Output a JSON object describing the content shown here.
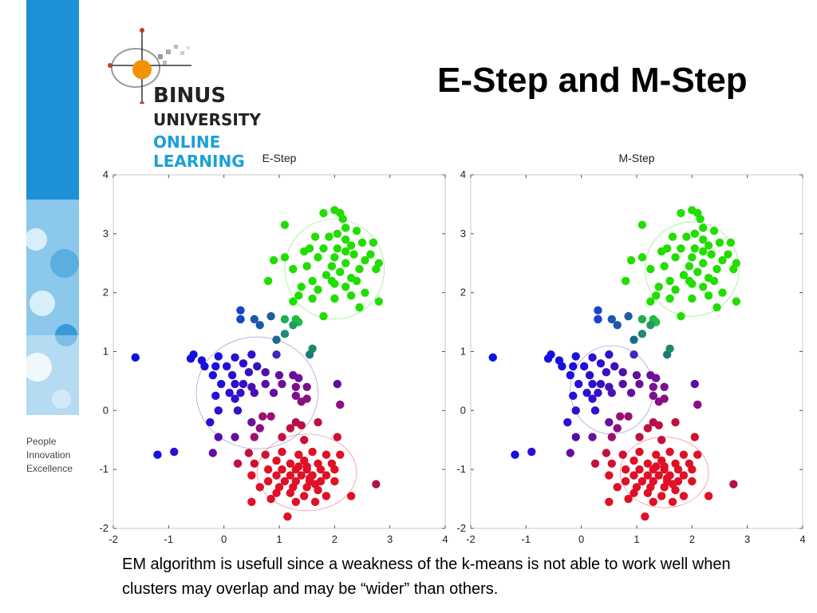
{
  "slide": {
    "title": "E-Step and M-Step",
    "caption": "EM algorithm is usefull since a weakness of the k-means is not able to work well when clusters may overlap and may be “wider” than others.",
    "logo": {
      "line1": "BINUS",
      "line2": "UNIVERSITY",
      "line3": "ONLINE",
      "line4": "LEARNING"
    },
    "tagline": [
      "People",
      "Innovation",
      "Excellence"
    ],
    "colors": {
      "accent_blue": "#1ba0d8",
      "brand_orange": "#f39200"
    }
  },
  "chart_data": [
    {
      "type": "scatter",
      "title": "E-Step",
      "xlim": [
        -2,
        4
      ],
      "ylim": [
        -2,
        4
      ],
      "xticks": [
        -2,
        -1,
        0,
        1,
        2,
        3,
        4
      ],
      "yticks": [
        -2,
        -1,
        0,
        1,
        2,
        3,
        4
      ],
      "grid": false,
      "components": [
        {
          "cx": 1.5,
          "cy": -1.05,
          "rx": 0.9,
          "ry": 0.65,
          "color": "#e8102a"
        },
        {
          "cx": 0.6,
          "cy": 0.3,
          "rx": 1.1,
          "ry": 0.95,
          "color": "#5a2aa8"
        },
        {
          "cx": 2.0,
          "cy": 2.4,
          "rx": 0.9,
          "ry": 0.85,
          "color": "#22dd00"
        }
      ],
      "points": [
        [
          2.0,
          3.4,
          "#22dd00"
        ],
        [
          2.1,
          3.35,
          "#22dd00"
        ],
        [
          1.8,
          3.35,
          "#22dd00"
        ],
        [
          2.15,
          3.25,
          "#22dd00"
        ],
        [
          2.2,
          3.1,
          "#22dd00"
        ],
        [
          2.05,
          3.0,
          "#22dd00"
        ],
        [
          2.4,
          3.05,
          "#22dd00"
        ],
        [
          1.9,
          2.95,
          "#22dd00"
        ],
        [
          1.65,
          2.95,
          "#22dd00"
        ],
        [
          2.2,
          2.9,
          "#22dd00"
        ],
        [
          2.7,
          2.85,
          "#22dd00"
        ],
        [
          2.5,
          2.85,
          "#22dd00"
        ],
        [
          2.3,
          2.8,
          "#22dd00"
        ],
        [
          2.05,
          2.75,
          "#22dd00"
        ],
        [
          1.8,
          2.75,
          "#22dd00"
        ],
        [
          1.45,
          2.7,
          "#22dd00"
        ],
        [
          2.65,
          2.65,
          "#22dd00"
        ],
        [
          2.35,
          2.65,
          "#22dd00"
        ],
        [
          2.0,
          2.6,
          "#22dd00"
        ],
        [
          1.7,
          2.6,
          "#22dd00"
        ],
        [
          0.9,
          2.55,
          "#22dd00"
        ],
        [
          2.55,
          2.55,
          "#22dd00"
        ],
        [
          2.8,
          2.5,
          "#22dd00"
        ],
        [
          2.2,
          2.5,
          "#22dd00"
        ],
        [
          1.95,
          2.45,
          "#22dd00"
        ],
        [
          1.5,
          2.45,
          "#22dd00"
        ],
        [
          2.45,
          2.4,
          "#22dd00"
        ],
        [
          2.75,
          2.4,
          "#22dd00"
        ],
        [
          1.25,
          2.4,
          "#22dd00"
        ],
        [
          2.1,
          2.35,
          "#22dd00"
        ],
        [
          1.85,
          2.3,
          "#22dd00"
        ],
        [
          2.3,
          2.25,
          "#22dd00"
        ],
        [
          1.6,
          2.2,
          "#22dd00"
        ],
        [
          2.0,
          2.15,
          "#22dd00"
        ],
        [
          2.2,
          2.1,
          "#22dd00"
        ],
        [
          0.8,
          2.2,
          "#22dd00"
        ],
        [
          1.4,
          2.1,
          "#22dd00"
        ],
        [
          1.7,
          2.05,
          "#22dd00"
        ],
        [
          2.55,
          2.0,
          "#22dd00"
        ],
        [
          2.3,
          1.95,
          "#22dd00"
        ],
        [
          1.6,
          1.9,
          "#22dd00"
        ],
        [
          2.0,
          1.9,
          "#22dd00"
        ],
        [
          1.35,
          1.95,
          "#22dd00"
        ],
        [
          1.25,
          1.85,
          "#22dd00"
        ],
        [
          2.8,
          1.85,
          "#22dd00"
        ],
        [
          2.45,
          1.75,
          "#22dd00"
        ],
        [
          1.8,
          1.6,
          "#22dd00"
        ],
        [
          1.1,
          2.6,
          "#22dd00"
        ],
        [
          1.55,
          2.75,
          "#22dd00"
        ],
        [
          1.1,
          3.15,
          "#22dd00"
        ],
        [
          2.2,
          2.7,
          "#22dd00"
        ],
        [
          1.95,
          2.2,
          "#22dd00"
        ],
        [
          2.4,
          2.2,
          "#22dd00"
        ],
        [
          1.3,
          1.55,
          "#22bb44"
        ],
        [
          1.35,
          1.5,
          "#22bb44"
        ],
        [
          1.1,
          1.55,
          "#22aa55"
        ],
        [
          1.25,
          1.45,
          "#229966"
        ],
        [
          1.1,
          1.3,
          "#228877"
        ],
        [
          0.85,
          1.6,
          "#1d5f9f"
        ],
        [
          0.55,
          1.55,
          "#1a5aa8"
        ],
        [
          0.65,
          1.45,
          "#1a5aa8"
        ],
        [
          0.95,
          1.2,
          "#1c6a8a"
        ],
        [
          0.3,
          1.7,
          "#1a44c8"
        ],
        [
          0.3,
          1.55,
          "#1a44c8"
        ],
        [
          0.3,
          1.55,
          "#1a44c8"
        ],
        [
          1.6,
          1.05,
          "#1e8a6a"
        ],
        [
          1.55,
          0.95,
          "#1e7a7a"
        ],
        [
          0.95,
          0.95,
          "#3a2ac0"
        ],
        [
          -1.6,
          0.9,
          "#1010e0"
        ],
        [
          -0.55,
          0.95,
          "#1510e0"
        ],
        [
          -0.6,
          0.88,
          "#1510e0"
        ],
        [
          -0.4,
          0.85,
          "#1510e0"
        ],
        [
          -0.1,
          0.92,
          "#1a10e0"
        ],
        [
          0.2,
          0.9,
          "#2a10d0"
        ],
        [
          0.5,
          0.95,
          "#3010d0"
        ],
        [
          -0.35,
          0.75,
          "#1510e0"
        ],
        [
          -0.15,
          0.75,
          "#1a10e0"
        ],
        [
          0.05,
          0.75,
          "#2010d8"
        ],
        [
          0.35,
          0.8,
          "#2a10d0"
        ],
        [
          0.6,
          0.75,
          "#3a10c0"
        ],
        [
          -0.2,
          0.6,
          "#1a10e0"
        ],
        [
          0.15,
          0.6,
          "#2510d0"
        ],
        [
          0.45,
          0.65,
          "#3a10c0"
        ],
        [
          0.75,
          0.65,
          "#5010a8"
        ],
        [
          1.0,
          0.6,
          "#6010a0"
        ],
        [
          1.25,
          0.6,
          "#6a1098"
        ],
        [
          1.35,
          0.55,
          "#7010a0"
        ],
        [
          -0.05,
          0.45,
          "#2010d8"
        ],
        [
          0.2,
          0.45,
          "#2a10d0"
        ],
        [
          0.35,
          0.45,
          "#3510c8"
        ],
        [
          0.5,
          0.4,
          "#4510b8"
        ],
        [
          0.75,
          0.45,
          "#5510a8"
        ],
        [
          1.05,
          0.45,
          "#6a1098"
        ],
        [
          1.3,
          0.4,
          "#7a1090"
        ],
        [
          1.5,
          0.4,
          "#7a1090"
        ],
        [
          2.05,
          0.45,
          "#5a10a0"
        ],
        [
          0.1,
          0.3,
          "#2a10d0"
        ],
        [
          0.3,
          0.3,
          "#3510c8"
        ],
        [
          -0.15,
          0.25,
          "#2510d8"
        ],
        [
          0.55,
          0.3,
          "#4a10b0"
        ],
        [
          0.9,
          0.3,
          "#6010a0"
        ],
        [
          1.3,
          0.25,
          "#7a1090"
        ],
        [
          0.2,
          0.2,
          "#3010d0"
        ],
        [
          1.5,
          0.2,
          "#8a1080"
        ],
        [
          1.4,
          0.15,
          "#8a1080"
        ],
        [
          2.1,
          0.1,
          "#8a1080"
        ],
        [
          0.25,
          0.0,
          "#3510c8"
        ],
        [
          -0.1,
          0.0,
          "#2a10d0"
        ],
        [
          -0.25,
          -0.2,
          "#3010d0"
        ],
        [
          0.5,
          -0.2,
          "#6a1098"
        ],
        [
          0.85,
          -0.1,
          "#9a1070"
        ],
        [
          0.7,
          -0.1,
          "#9a1070"
        ],
        [
          1.3,
          -0.2,
          "#b0104f"
        ],
        [
          1.4,
          -0.25,
          "#c01040"
        ],
        [
          1.7,
          -0.2,
          "#c01040"
        ],
        [
          1.2,
          -0.3,
          "#c01040"
        ],
        [
          0.65,
          -0.3,
          "#8a1080"
        ],
        [
          0.2,
          -0.45,
          "#6a1098"
        ],
        [
          0.55,
          -0.45,
          "#9a1070"
        ],
        [
          1.05,
          -0.45,
          "#c01040"
        ],
        [
          1.45,
          -0.5,
          "#c8103a"
        ],
        [
          2.05,
          -0.45,
          "#d01030"
        ],
        [
          -0.1,
          -0.45,
          "#5010a8"
        ],
        [
          -1.2,
          -0.75,
          "#1510e0"
        ],
        [
          -0.9,
          -0.7,
          "#2a10d0"
        ],
        [
          -0.2,
          -0.72,
          "#6010a0"
        ],
        [
          0.45,
          -0.72,
          "#c01040"
        ],
        [
          0.75,
          -0.75,
          "#d01030"
        ],
        [
          1.05,
          -0.7,
          "#d81028"
        ],
        [
          1.35,
          -0.75,
          "#e01025"
        ],
        [
          1.6,
          -0.7,
          "#e01025"
        ],
        [
          1.85,
          -0.75,
          "#e01025"
        ],
        [
          2.1,
          -0.75,
          "#e01025"
        ],
        [
          0.25,
          -0.9,
          "#c01040"
        ],
        [
          0.55,
          -0.9,
          "#d01030"
        ],
        [
          0.95,
          -0.85,
          "#e01025"
        ],
        [
          1.2,
          -0.9,
          "#e01025"
        ],
        [
          1.45,
          -0.85,
          "#e01025"
        ],
        [
          1.7,
          -0.9,
          "#e01025"
        ],
        [
          1.95,
          -0.9,
          "#e01025"
        ],
        [
          0.8,
          -1.0,
          "#e01025"
        ],
        [
          1.05,
          -1.0,
          "#e01025"
        ],
        [
          1.3,
          -1.0,
          "#e01025"
        ],
        [
          1.5,
          -1.0,
          "#e01025"
        ],
        [
          1.75,
          -1.0,
          "#e01025"
        ],
        [
          2.0,
          -1.0,
          "#e01025"
        ],
        [
          0.5,
          -1.1,
          "#e01025"
        ],
        [
          0.95,
          -1.1,
          "#e01025"
        ],
        [
          1.2,
          -1.1,
          "#e01025"
        ],
        [
          1.4,
          -1.1,
          "#e01025"
        ],
        [
          1.6,
          -1.1,
          "#e01025"
        ],
        [
          1.85,
          -1.1,
          "#e01025"
        ],
        [
          0.8,
          -1.2,
          "#e01025"
        ],
        [
          1.1,
          -1.2,
          "#e01025"
        ],
        [
          1.3,
          -1.2,
          "#e01025"
        ],
        [
          1.55,
          -1.2,
          "#e01025"
        ],
        [
          1.75,
          -1.2,
          "#e01025"
        ],
        [
          2.0,
          -1.2,
          "#e01025"
        ],
        [
          0.65,
          -1.3,
          "#e01025"
        ],
        [
          1.0,
          -1.3,
          "#e01025"
        ],
        [
          1.25,
          -1.3,
          "#e01025"
        ],
        [
          1.5,
          -1.3,
          "#e01025"
        ],
        [
          1.7,
          -1.35,
          "#e01025"
        ],
        [
          2.75,
          -1.25,
          "#b0104f"
        ],
        [
          0.95,
          -1.4,
          "#e01025"
        ],
        [
          1.2,
          -1.4,
          "#e01025"
        ],
        [
          1.45,
          -1.45,
          "#e01025"
        ],
        [
          1.85,
          -1.45,
          "#e01025"
        ],
        [
          2.3,
          -1.45,
          "#e01025"
        ],
        [
          0.5,
          -1.55,
          "#e01025"
        ],
        [
          1.3,
          -1.55,
          "#e01025"
        ],
        [
          1.65,
          -1.55,
          "#e01025"
        ],
        [
          0.85,
          -1.5,
          "#e01025"
        ],
        [
          1.15,
          -1.8,
          "#e01025"
        ],
        [
          1.5,
          -0.95,
          "#e01025"
        ],
        [
          1.55,
          -1.15,
          "#e01025"
        ],
        [
          1.35,
          -0.95,
          "#e01025"
        ],
        [
          1.65,
          -1.25,
          "#e01025"
        ]
      ]
    },
    {
      "type": "scatter",
      "title": "M-Step",
      "xlim": [
        -2,
        4
      ],
      "ylim": [
        -2,
        4
      ],
      "xticks": [
        -2,
        -1,
        0,
        1,
        2,
        3,
        4
      ],
      "yticks": [
        -2,
        -1,
        0,
        1,
        2,
        3,
        4
      ],
      "grid": false,
      "components": [
        {
          "cx": 1.5,
          "cy": -1.05,
          "rx": 0.8,
          "ry": 0.6,
          "color": "#e8102a"
        },
        {
          "cx": 0.55,
          "cy": 0.35,
          "rx": 0.75,
          "ry": 0.75,
          "color": "#3a2ac0"
        },
        {
          "cx": 2.0,
          "cy": 2.4,
          "rx": 0.85,
          "ry": 0.8,
          "color": "#22dd00"
        }
      ],
      "points_ref": 0
    }
  ]
}
